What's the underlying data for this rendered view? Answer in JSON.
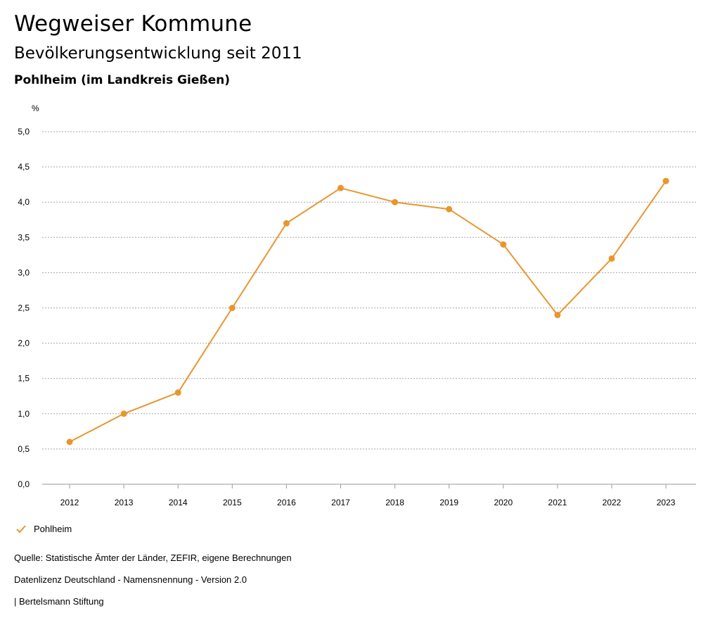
{
  "header": {
    "title": "Wegweiser Kommune",
    "subtitle": "Bevölkerungsentwicklung seit 2011",
    "place": "Pohlheim (im Landkreis Gießen)"
  },
  "chart_data": {
    "type": "line",
    "title": "Bevölkerungsentwicklung seit 2011",
    "ylabel": "%",
    "xlabel": "",
    "ylim": [
      0,
      5
    ],
    "yticks": [
      "0,0",
      "0,5",
      "1,0",
      "1,5",
      "2,0",
      "2,5",
      "3,0",
      "3,5",
      "4,0",
      "4,5",
      "5,0"
    ],
    "categories": [
      "2012",
      "2013",
      "2014",
      "2015",
      "2016",
      "2017",
      "2018",
      "2019",
      "2020",
      "2021",
      "2022",
      "2023"
    ],
    "series": [
      {
        "name": "Pohlheim",
        "color": "#e8962e",
        "values": [
          0.6,
          1.0,
          1.3,
          2.5,
          3.7,
          4.2,
          4.0,
          3.9,
          3.4,
          2.4,
          3.2,
          4.3
        ]
      }
    ],
    "grid": true,
    "legend": "bottom-left"
  },
  "footer": {
    "source": "Quelle: Statistische Ämter der Länder, ZEFIR, eigene Berechnungen",
    "license": "Datenlizenz Deutschland - Namensnennung - Version 2.0",
    "publisher": "| Bertelsmann Stiftung"
  }
}
